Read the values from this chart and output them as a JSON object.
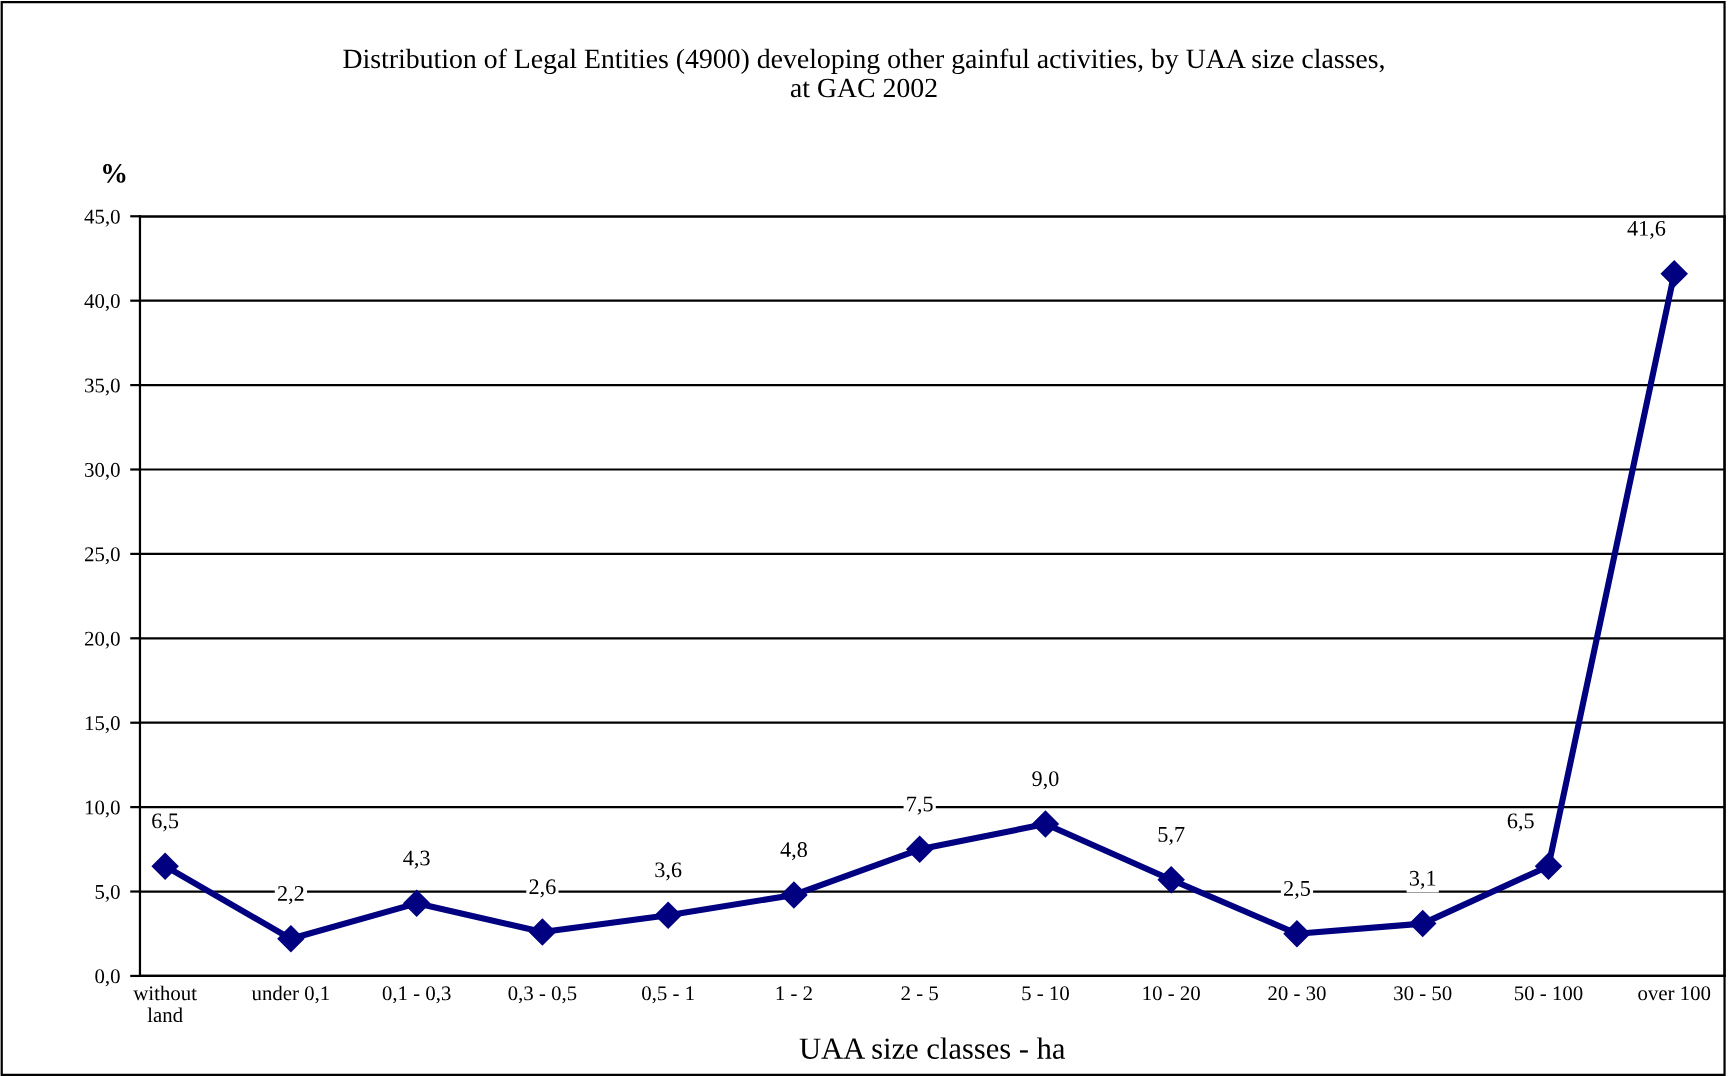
{
  "chart_data": {
    "type": "line",
    "title": "Distribution of Legal Entities (4900) developing other gainful activities, by UAA size classes,\nat GAC 2002",
    "xlabel": "UAA size classes - ha",
    "ylabel": "%",
    "categories": [
      "without\nland",
      "under 0,1",
      "0,1 - 0,3",
      "0,3 - 0,5",
      "0,5 - 1",
      "1 - 2",
      "2 - 5",
      "5 - 10",
      "10 - 20",
      "20 - 30",
      "30 - 50",
      "50 - 100",
      "over 100"
    ],
    "series": [
      {
        "color": "#000080",
        "values": [
          6.5,
          2.2,
          4.3,
          2.6,
          3.6,
          4.8,
          7.5,
          9.0,
          5.7,
          2.5,
          3.1,
          6.5,
          41.6
        ],
        "value_labels": [
          "6,5",
          "2,2",
          "4,3",
          "2,6",
          "3,6",
          "4,8",
          "7,5",
          "9,0",
          "5,7",
          "2,5",
          "3,1",
          "6,5",
          "41,6"
        ]
      }
    ],
    "ylim": [
      0,
      45
    ],
    "yticks": [
      {
        "value": 0,
        "label": "0,0"
      },
      {
        "value": 5,
        "label": "5,0"
      },
      {
        "value": 10,
        "label": "10,0"
      },
      {
        "value": 15,
        "label": "15,0"
      },
      {
        "value": 20,
        "label": "20,0"
      },
      {
        "value": 25,
        "label": "25,0"
      },
      {
        "value": 30,
        "label": "30,0"
      },
      {
        "value": 35,
        "label": "35,0"
      },
      {
        "value": 40,
        "label": "40,0"
      },
      {
        "value": 45,
        "label": "45,0"
      }
    ],
    "grid": "y",
    "marker": "diamond",
    "line_style": "solid",
    "legend": false
  }
}
